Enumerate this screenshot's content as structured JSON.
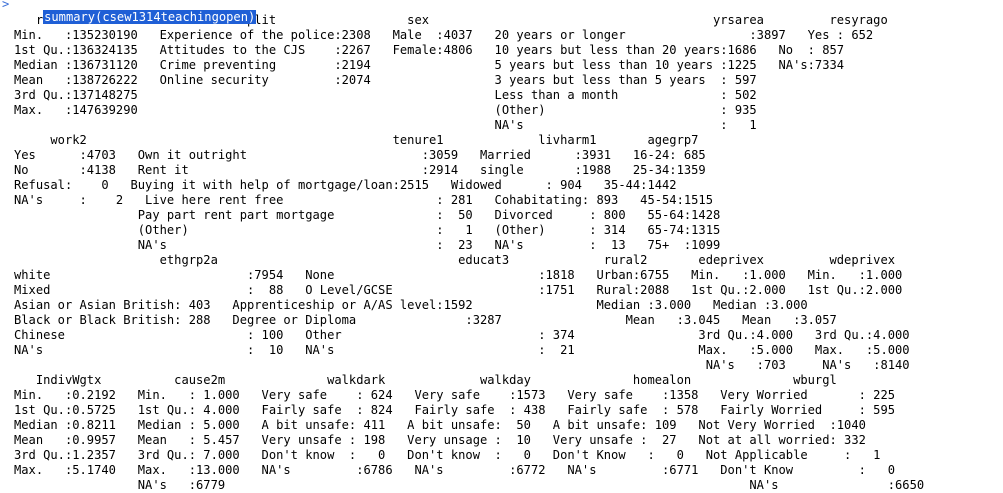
{
  "console": {
    "prompt": ">",
    "command": "summary(csew1314teachingopen)",
    "output_lines": [
      "   rowlabel                    split                  sex                                       yrsarea         resyrago",
      "Min.   :135230190   Experience of the police:2308   Male  :4037   20 years or longer                 :3897   Yes : 652",
      "1st Qu.:136324135   Attitudes to the CJS    :2267   Female:4806   10 years but less than 20 years:1686   No  : 857",
      "Median :136731120   Crime preventing        :2194                 5 years but less than 10 years :1225   NA's:7334",
      "Mean   :138726222   Online security         :2074                 3 years but less than 5 years  : 597",
      "3rd Qu.:137148275                                                 Less than a month              : 502",
      "Max.   :147639290                                                 (Other)                        : 935",
      "                                                                  NA's                           :   1",
      "     work2                                          tenure1             livharm1       agegrp7",
      "Yes      :4703   Own it outright                        :3059   Married      :3931   16-24: 685",
      "No       :4138   Rent it                                :2914   single       :1988   25-34:1359",
      "Refusal:    0   Buying it with help of mortgage/loan:2515   Widowed      : 904   35-44:1442",
      "NA's     :    2   Live here rent free                     : 281   Cohabitating: 893   45-54:1515",
      "                 Pay part rent part mortgage              :  50   Divorced     : 800   55-64:1428",
      "                 (Other)                                  :   1   (Other)      : 314   65-74:1315",
      "                 NA's                                     :  23   NA's         :  13   75+  :1099",
      "                    ethgrp2a                                 educat3             rural2       edeprivex         wdeprivex",
      "white                           :7954   None                            :1818   Urban:6755   Min.   :1.000   Min.   :1.000",
      "Mixed                           :  88   O Level/GCSE                    :1751   Rural:2088   1st Qu.:2.000   1st Qu.:2.000",
      "Asian or Asian British: 403   Apprenticeship or A/AS level:1592                 Median :3.000   Median :3.000",
      "Black or Black British: 288   Degree or Diploma               :3287                 Mean   :3.045   Mean   :3.057",
      "Chinese                         : 100   Other                           : 374                 3rd Qu.:4.000   3rd Qu.:4.000",
      "NA's                            :  10   NA's                            :  21                 Max.   :5.000   Max.   :5.000",
      "                                                                                               NA's   :703     NA's   :8140",
      "   IndivWgtx          cause2m              walkdark             walkday              homealon              wburgl",
      "Min.   :0.2192   Min.   : 1.000   Very safe    : 624   Very safe    :1573   Very safe    :1358   Very Worried       : 225",
      "1st Qu.:0.5725   1st Qu.: 4.000   Fairly safe  : 824   Fairly safe  : 438   Fairly safe  : 578   Fairly Worried     : 595",
      "Median :0.8211   Median : 5.000   A bit unsafe: 411   A bit unsafe:  50   A bit unsafe: 109   Not Very Worried  :1040",
      "Mean   :0.9957   Mean   : 5.457   Very unsafe : 198   Very unsage :  10   Very unsafe :  27   Not at all worried: 332",
      "3rd Qu.:1.2357   3rd Qu.: 7.000   Don't know  :   0   Don't know  :   0   Don't Know   :   0   Not Applicable     :   1",
      "Max.   :5.1740   Max.   :13.000   NA's         :6786   NA's         :6772   NA's         :6771   Don't Know         :   0",
      "                 NA's   :6779                                                                        NA's               :6650"
    ]
  }
}
